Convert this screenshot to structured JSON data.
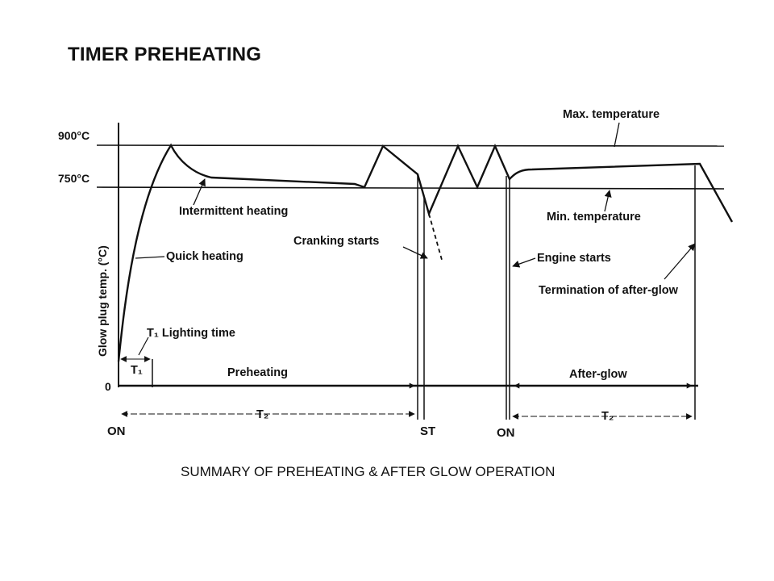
{
  "title": "TIMER PREHEATING",
  "caption": "SUMMARY OF PREHEATING & AFTER GLOW OPERATION",
  "diagram": {
    "y_axis_label": "Glow plug temp. (°C)",
    "y_ticks": {
      "t900": "900°C",
      "t750": "750°C",
      "t0": "0"
    },
    "labels": {
      "max_temperature": "Max. temperature",
      "min_temperature": "Min. temperature",
      "intermittent_heating": "Intermittent heating",
      "quick_heating": "Quick heating",
      "cranking_starts": "Cranking starts",
      "engine_starts": "Engine starts",
      "termination_after_glow": "Termination of after-glow",
      "lighting_time": "T₁ Lighting time",
      "t1": "T₁",
      "preheating": "Preheating",
      "after_glow": "After-glow",
      "t2_left": "T₂",
      "t2_right": "T₂"
    },
    "x_events": {
      "on1": "ON",
      "st": "ST",
      "on2": "ON"
    }
  }
}
